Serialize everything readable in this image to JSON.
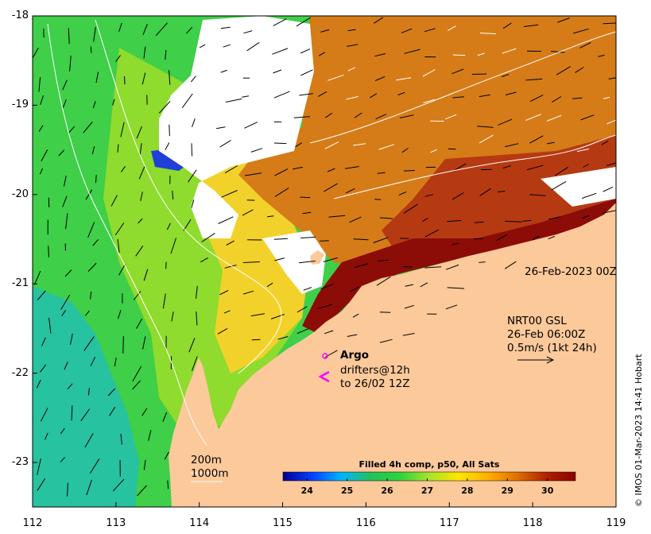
{
  "map": {
    "lon_ticks": [
      "112",
      "113",
      "114",
      "115",
      "116",
      "117",
      "118",
      "119"
    ],
    "lat_ticks": [
      "-18",
      "-19",
      "-20",
      "-21",
      "-22",
      "-23"
    ],
    "lon_range": [
      112,
      119
    ],
    "lat_range": [
      -23.5,
      -18
    ]
  },
  "annotations": {
    "date_label": "26-Feb-2023 00Z",
    "current_title": "NRT00 GSL",
    "current_time": "26-Feb 06:00Z",
    "current_scale": "0.5m/s (1kt 24h)",
    "argo_label": "Argo",
    "drifters_label": "drifters@12h",
    "drifters_to": "to 26/02 12Z",
    "isobath_200": "200m",
    "isobath_1000": "1000m"
  },
  "colorbar": {
    "title": "Filled 4h comp, p50, All Sats",
    "ticks": [
      "24",
      "25",
      "26",
      "27",
      "28",
      "29",
      "30"
    ],
    "range": [
      23.4,
      30.7
    ],
    "colors": [
      "#00008f",
      "#0040ff",
      "#00b4ff",
      "#22c15a",
      "#2fd23b",
      "#a6e42a",
      "#ffe600",
      "#ffb000",
      "#e07000",
      "#b02000",
      "#8b0000"
    ]
  },
  "credit": "© IMOS 01-Mar-2023 14:41 Hobart",
  "colors": {
    "land": "#fcc99b",
    "cloud": "#ffffff",
    "argo": "#ff00ff",
    "vector": "#000000",
    "contour": "#ffffff"
  }
}
